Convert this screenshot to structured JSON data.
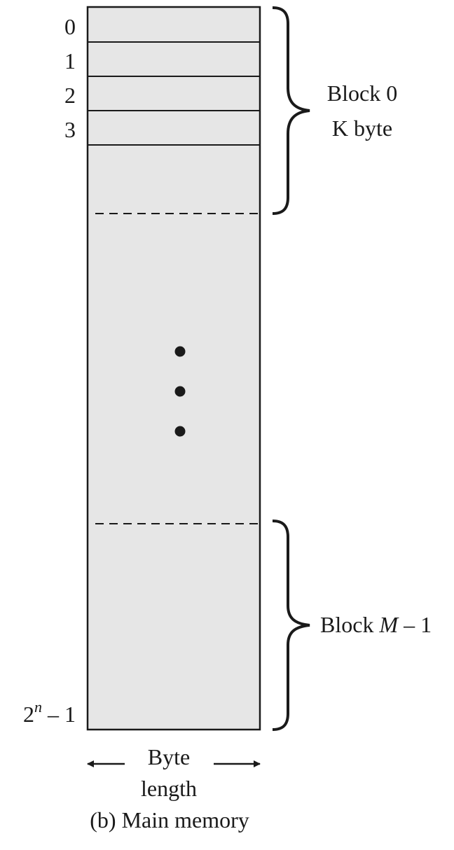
{
  "address_labels": {
    "a0": "0",
    "a1": "1",
    "a2": "2",
    "a3": "3",
    "last_base": "2",
    "last_exp": "n",
    "last_tail": " – 1"
  },
  "blocks": {
    "first_label_line1": "Block 0",
    "first_label_line2": "K byte",
    "last_label_prefix": "Block ",
    "last_label_var": "M",
    "last_label_suffix": " – 1"
  },
  "width_label": {
    "line1": "Byte",
    "line2": "length"
  },
  "caption": "(b) Main memory",
  "colors": {
    "memory_fill": "#e6e6e6",
    "stroke": "#1a1a1a"
  }
}
